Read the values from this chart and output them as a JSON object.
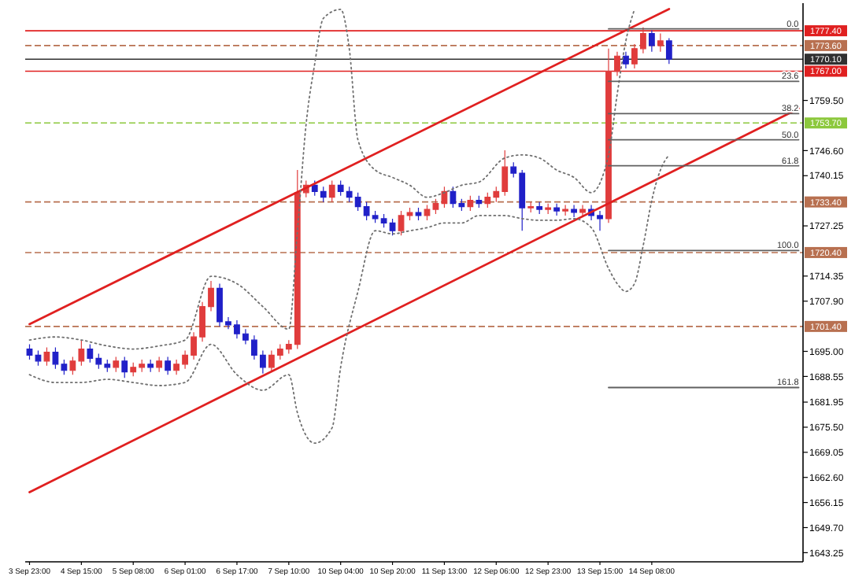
{
  "chart_data": {
    "type": "candlestick",
    "categories": [
      "3 Sep 23:00",
      null,
      null,
      null,
      null,
      null,
      "4 Sep 15:00",
      null,
      null,
      null,
      null,
      null,
      "5 Sep 08:00",
      null,
      null,
      null,
      null,
      null,
      "6 Sep 01:00",
      null,
      null,
      null,
      null,
      null,
      "6 Sep 17:00",
      null,
      null,
      null,
      null,
      null,
      "7 Sep 10:00",
      null,
      null,
      null,
      null,
      null,
      "10 Sep 04:00",
      null,
      null,
      null,
      null,
      null,
      "10 Sep 20:00",
      null,
      null,
      null,
      null,
      null,
      "11 Sep 13:00",
      null,
      null,
      null,
      null,
      null,
      "12 Sep 06:00",
      null,
      null,
      null,
      null,
      null,
      "12 Sep 23:00",
      null,
      null,
      null,
      null,
      null,
      "13 Sep 15:00",
      null,
      null,
      null,
      null,
      null,
      "14 Sep 08:00",
      null,
      null,
      null,
      null,
      null,
      null,
      null,
      null,
      null,
      null,
      null,
      null,
      null,
      null,
      null,
      null,
      null
    ],
    "ohlc": [
      [
        1695.6,
        1696.8,
        1692.9,
        1694.0
      ],
      [
        1694.0,
        1695.2,
        1691.3,
        1692.5
      ],
      [
        1692.5,
        1696.0,
        1691.3,
        1694.8
      ],
      [
        1694.8,
        1696.0,
        1690.5,
        1691.7
      ],
      [
        1691.7,
        1692.9,
        1689.0,
        1690.1
      ],
      [
        1690.1,
        1693.6,
        1689.0,
        1692.5
      ],
      [
        1692.5,
        1697.9,
        1691.3,
        1695.6
      ],
      [
        1695.6,
        1696.8,
        1692.1,
        1693.2
      ],
      [
        1693.2,
        1694.4,
        1690.5,
        1691.7
      ],
      [
        1691.7,
        1692.9,
        1689.7,
        1690.9
      ],
      [
        1690.9,
        1693.6,
        1689.7,
        1692.5
      ],
      [
        1692.5,
        1693.6,
        1688.2,
        1689.7
      ],
      [
        1689.7,
        1692.1,
        1688.6,
        1690.9
      ],
      [
        1690.9,
        1692.9,
        1689.7,
        1691.7
      ],
      [
        1691.7,
        1692.9,
        1689.7,
        1690.9
      ],
      [
        1690.9,
        1693.6,
        1689.7,
        1692.5
      ],
      [
        1692.5,
        1693.6,
        1689.0,
        1690.1
      ],
      [
        1690.1,
        1692.9,
        1689.0,
        1691.7
      ],
      [
        1691.7,
        1695.2,
        1690.5,
        1694.0
      ],
      [
        1694.0,
        1699.9,
        1692.9,
        1698.7
      ],
      [
        1698.7,
        1707.7,
        1697.5,
        1706.5
      ],
      [
        1706.5,
        1713.1,
        1705.3,
        1711.2
      ],
      [
        1711.2,
        1712.4,
        1701.4,
        1702.6
      ],
      [
        1702.6,
        1703.8,
        1700.7,
        1701.8
      ],
      [
        1701.8,
        1703.0,
        1698.3,
        1699.5
      ],
      [
        1699.5,
        1700.7,
        1696.8,
        1697.9
      ],
      [
        1697.9,
        1699.1,
        1692.9,
        1694.0
      ],
      [
        1694.0,
        1695.2,
        1689.3,
        1690.9
      ],
      [
        1690.9,
        1695.2,
        1689.7,
        1694.0
      ],
      [
        1694.0,
        1696.8,
        1692.9,
        1695.6
      ],
      [
        1695.6,
        1697.9,
        1694.4,
        1696.8
      ],
      [
        1696.8,
        1741.6,
        1695.6,
        1735.8
      ],
      [
        1735.8,
        1738.9,
        1734.6,
        1737.7
      ],
      [
        1737.7,
        1738.9,
        1735.0,
        1736.1
      ],
      [
        1736.1,
        1737.3,
        1733.4,
        1734.6
      ],
      [
        1734.6,
        1738.9,
        1733.4,
        1737.7
      ],
      [
        1737.7,
        1738.9,
        1735.0,
        1736.1
      ],
      [
        1736.1,
        1737.3,
        1733.4,
        1734.6
      ],
      [
        1734.6,
        1735.8,
        1731.1,
        1732.2
      ],
      [
        1732.2,
        1733.4,
        1728.7,
        1729.9
      ],
      [
        1729.9,
        1731.1,
        1728.0,
        1729.1
      ],
      [
        1729.1,
        1730.3,
        1726.8,
        1728.0
      ],
      [
        1728.0,
        1729.1,
        1724.8,
        1726.0
      ],
      [
        1726.0,
        1731.1,
        1724.8,
        1729.9
      ],
      [
        1729.9,
        1731.9,
        1728.7,
        1730.7
      ],
      [
        1730.7,
        1731.9,
        1728.7,
        1729.9
      ],
      [
        1729.9,
        1732.6,
        1728.7,
        1731.5
      ],
      [
        1731.5,
        1734.2,
        1730.3,
        1733.0
      ],
      [
        1733.0,
        1737.3,
        1731.9,
        1736.1
      ],
      [
        1736.1,
        1737.3,
        1731.9,
        1733.0
      ],
      [
        1733.0,
        1734.2,
        1731.1,
        1732.2
      ],
      [
        1732.2,
        1735.0,
        1731.1,
        1733.8
      ],
      [
        1733.8,
        1735.0,
        1731.9,
        1733.0
      ],
      [
        1733.0,
        1735.8,
        1731.9,
        1734.6
      ],
      [
        1734.6,
        1737.3,
        1733.4,
        1736.1
      ],
      [
        1736.1,
        1746.7,
        1735.0,
        1742.4
      ],
      [
        1742.4,
        1743.6,
        1739.7,
        1740.8
      ],
      [
        1740.8,
        1741.6,
        1726.0,
        1731.9
      ],
      [
        1731.9,
        1733.4,
        1730.7,
        1732.2
      ],
      [
        1732.2,
        1733.4,
        1730.3,
        1731.5
      ],
      [
        1731.5,
        1733.0,
        1730.3,
        1731.9
      ],
      [
        1731.9,
        1733.0,
        1729.9,
        1731.1
      ],
      [
        1731.1,
        1732.6,
        1729.9,
        1731.5
      ],
      [
        1731.5,
        1732.6,
        1729.5,
        1730.7
      ],
      [
        1730.7,
        1732.6,
        1729.5,
        1731.5
      ],
      [
        1731.5,
        1732.6,
        1728.7,
        1729.9
      ],
      [
        1729.9,
        1731.1,
        1726.0,
        1729.1
      ],
      [
        1729.1,
        1772.8,
        1728.0,
        1767.0
      ],
      [
        1767.0,
        1772.0,
        1765.8,
        1770.9
      ],
      [
        1770.9,
        1772.0,
        1767.7,
        1768.9
      ],
      [
        1768.9,
        1774.0,
        1767.7,
        1772.8
      ],
      [
        1772.8,
        1778.3,
        1771.6,
        1776.7
      ],
      [
        1776.7,
        1777.5,
        1772.0,
        1773.6
      ],
      [
        1773.6,
        1776.7,
        1772.0,
        1774.8
      ],
      [
        1774.8,
        1775.5,
        1768.9,
        1770.1
      ],
      null,
      null,
      null,
      null,
      null,
      null,
      null,
      null,
      null,
      null,
      null,
      null,
      null,
      null,
      null
    ],
    "colors": [
      "#2020c8",
      "#2020c8",
      "#e03c3c",
      "#2020c8",
      "#2020c8",
      "#e03c3c",
      "#e03c3c",
      "#2020c8",
      "#2020c8",
      "#2020c8",
      "#e03c3c",
      "#2020c8",
      "#e03c3c",
      "#e03c3c",
      "#2020c8",
      "#e03c3c",
      "#2020c8",
      "#e03c3c",
      "#e03c3c",
      "#e03c3c",
      "#e03c3c",
      "#e03c3c",
      "#2020c8",
      "#2020c8",
      "#2020c8",
      "#2020c8",
      "#2020c8",
      "#2020c8",
      "#e03c3c",
      "#e03c3c",
      "#e03c3c",
      "#e03c3c",
      "#e03c3c",
      "#2020c8",
      "#2020c8",
      "#e03c3c",
      "#2020c8",
      "#2020c8",
      "#2020c8",
      "#2020c8",
      "#2020c8",
      "#2020c8",
      "#2020c8",
      "#e03c3c",
      "#e03c3c",
      "#2020c8",
      "#e03c3c",
      "#e03c3c",
      "#e03c3c",
      "#2020c8",
      "#2020c8",
      "#e03c3c",
      "#2020c8",
      "#e03c3c",
      "#e03c3c",
      "#e03c3c",
      "#2020c8",
      "#2020c8",
      "#e03c3c",
      "#2020c8",
      "#e03c3c",
      "#2020c8",
      "#e03c3c",
      "#2020c8",
      "#e03c3c",
      "#2020c8",
      "#2020c8",
      "#e03c3c",
      "#e03c3c",
      "#2020c8",
      "#e03c3c",
      "#e03c3c",
      "#2020c8",
      "#e03c3c",
      "#2020c8",
      null,
      null,
      null,
      null,
      null,
      null,
      null,
      null,
      null,
      null,
      null,
      null,
      null,
      null,
      null
    ],
    "series": [
      {
        "type": "line",
        "color": "#e02020",
        "line_style": "solid",
        "values": [
          1702.0,
          null,
          null,
          null,
          null,
          null,
          null,
          null,
          null,
          null,
          null,
          null,
          null,
          null,
          null,
          null,
          null,
          null,
          null,
          null,
          null,
          null,
          null,
          null,
          null,
          null,
          null,
          null,
          null,
          null,
          null,
          null,
          null,
          null,
          null,
          null,
          null,
          null,
          null,
          null,
          null,
          null,
          null,
          null,
          null,
          null,
          null,
          null,
          null,
          null,
          null,
          null,
          null,
          null,
          null,
          null,
          null,
          null,
          null,
          null,
          null,
          null,
          null,
          null,
          null,
          null,
          null,
          null,
          null,
          null,
          null,
          null,
          null,
          null,
          1783.0,
          null,
          null,
          null,
          null,
          null,
          null,
          null,
          null,
          null,
          null,
          null,
          null,
          null,
          null,
          null
        ]
      },
      {
        "type": "line",
        "color": "#e02020",
        "line_style": "solid",
        "values": [
          1658.8,
          null,
          null,
          null,
          null,
          null,
          null,
          null,
          null,
          null,
          null,
          null,
          null,
          null,
          null,
          null,
          null,
          null,
          null,
          null,
          null,
          null,
          null,
          null,
          null,
          null,
          null,
          null,
          null,
          null,
          null,
          null,
          null,
          null,
          null,
          null,
          null,
          null,
          null,
          null,
          null,
          null,
          null,
          null,
          null,
          null,
          null,
          null,
          null,
          null,
          null,
          null,
          null,
          null,
          null,
          null,
          null,
          null,
          null,
          null,
          null,
          null,
          null,
          null,
          null,
          null,
          null,
          null,
          null,
          null,
          null,
          null,
          null,
          null,
          null,
          null,
          null,
          null,
          null,
          null,
          null,
          null,
          null,
          null,
          null,
          null,
          null,
          null,
          null,
          1757.4
        ]
      },
      {
        "type": "line",
        "color": "#707070",
        "line_style": "dotted",
        "values": [
          1697.9,
          null,
          null,
          1698.7,
          null,
          null,
          1697.9,
          null,
          null,
          1696.4,
          null,
          null,
          1695.6,
          null,
          null,
          1696.4,
          null,
          null,
          1697.9,
          null,
          null,
          1714.3,
          null,
          null,
          1712.4,
          null,
          null,
          1706.5,
          null,
          null,
          1700.7,
          1726.0,
          1753.3,
          1768.9,
          1780.6,
          null,
          1782.9,
          1772.8,
          1749.4,
          null,
          1741.6,
          null,
          1739.7,
          null,
          1737.7,
          null,
          1734.6,
          null,
          1735.8,
          null,
          1737.7,
          null,
          1738.5,
          null,
          null,
          1744.7,
          null,
          1745.5,
          null,
          1744.7,
          null,
          1741.6,
          null,
          1739.7,
          null,
          1735.8,
          null,
          1745.5,
          1761.1,
          1774.8,
          1782.9,
          null,
          null,
          null,
          null,
          null,
          null,
          null,
          null,
          null,
          null,
          null,
          null,
          null,
          null,
          null,
          null,
          null,
          null,
          null
        ]
      },
      {
        "type": "line",
        "color": "#707070",
        "line_style": "dotted",
        "values": [
          1689.0,
          null,
          null,
          1687.0,
          null,
          null,
          1687.0,
          null,
          null,
          1687.8,
          null,
          null,
          1687.0,
          null,
          null,
          1686.2,
          null,
          null,
          1687.0,
          null,
          null,
          1696.8,
          null,
          null,
          1689.0,
          null,
          null,
          1685.0,
          null,
          null,
          1689.0,
          1679.2,
          null,
          1671.4,
          null,
          1675.3,
          1690.9,
          null,
          1710.4,
          null,
          1726.0,
          null,
          1725.2,
          null,
          1726.0,
          null,
          1726.8,
          null,
          1728.0,
          null,
          1728.0,
          null,
          1729.9,
          null,
          null,
          1729.9,
          null,
          1729.1,
          null,
          1728.7,
          null,
          1728.7,
          null,
          1729.1,
          null,
          1726.8,
          null,
          1716.3,
          1712.4,
          1710.4,
          1712.4,
          1722.1,
          1733.8,
          1741.6,
          1745.5,
          null,
          null,
          null,
          null,
          null,
          null,
          null,
          null,
          null,
          null,
          null,
          null,
          null,
          null,
          null
        ]
      },
      {
        "type": "line",
        "name": "0.0",
        "color": "#606060",
        "line_style": "solid",
        "values": [
          null,
          null,
          null,
          null,
          null,
          null,
          null,
          null,
          null,
          null,
          null,
          null,
          null,
          null,
          null,
          null,
          null,
          null,
          null,
          null,
          null,
          null,
          null,
          null,
          null,
          null,
          null,
          null,
          null,
          null,
          null,
          null,
          null,
          null,
          null,
          null,
          null,
          null,
          null,
          null,
          null,
          null,
          null,
          null,
          null,
          null,
          null,
          null,
          null,
          null,
          null,
          null,
          null,
          null,
          null,
          null,
          null,
          null,
          null,
          null,
          null,
          null,
          null,
          null,
          null,
          null,
          null,
          1777.9,
          1777.9,
          1777.9,
          1777.9,
          1777.9,
          1777.9,
          1777.9,
          1777.9,
          1777.9,
          1777.9,
          1777.9,
          1777.9,
          1777.9,
          1777.9,
          1777.9,
          1777.9,
          1777.9,
          1777.9,
          1777.9,
          1777.9,
          1777.9,
          1777.9,
          1777.9
        ]
      },
      {
        "type": "line",
        "name": "23.6",
        "color": "#606060",
        "line_style": "solid",
        "values": [
          null,
          null,
          null,
          null,
          null,
          null,
          null,
          null,
          null,
          null,
          null,
          null,
          null,
          null,
          null,
          null,
          null,
          null,
          null,
          null,
          null,
          null,
          null,
          null,
          null,
          null,
          null,
          null,
          null,
          null,
          null,
          null,
          null,
          null,
          null,
          null,
          null,
          null,
          null,
          null,
          null,
          null,
          null,
          null,
          null,
          null,
          null,
          null,
          null,
          null,
          null,
          null,
          null,
          null,
          null,
          null,
          null,
          null,
          null,
          null,
          null,
          null,
          null,
          null,
          null,
          null,
          null,
          1764.4,
          1764.4,
          1764.4,
          1764.4,
          1764.4,
          1764.4,
          1764.4,
          1764.4,
          1764.4,
          1764.4,
          1764.4,
          1764.4,
          1764.4,
          1764.4,
          1764.4,
          1764.4,
          1764.4,
          1764.4,
          1764.4,
          1764.4,
          1764.4,
          1764.4,
          1764.4
        ]
      },
      {
        "type": "line",
        "name": "38.2",
        "color": "#606060",
        "line_style": "solid",
        "values": [
          null,
          null,
          null,
          null,
          null,
          null,
          null,
          null,
          null,
          null,
          null,
          null,
          null,
          null,
          null,
          null,
          null,
          null,
          null,
          null,
          null,
          null,
          null,
          null,
          null,
          null,
          null,
          null,
          null,
          null,
          null,
          null,
          null,
          null,
          null,
          null,
          null,
          null,
          null,
          null,
          null,
          null,
          null,
          null,
          null,
          null,
          null,
          null,
          null,
          null,
          null,
          null,
          null,
          null,
          null,
          null,
          null,
          null,
          null,
          null,
          null,
          null,
          null,
          null,
          null,
          null,
          null,
          1756.1,
          1756.1,
          1756.1,
          1756.1,
          1756.1,
          1756.1,
          1756.1,
          1756.1,
          1756.1,
          1756.1,
          1756.1,
          1756.1,
          1756.1,
          1756.1,
          1756.1,
          1756.1,
          1756.1,
          1756.1,
          1756.1,
          1756.1,
          1756.1,
          1756.1,
          1756.1
        ]
      },
      {
        "type": "line",
        "name": "50.0",
        "color": "#606060",
        "line_style": "solid",
        "values": [
          null,
          null,
          null,
          null,
          null,
          null,
          null,
          null,
          null,
          null,
          null,
          null,
          null,
          null,
          null,
          null,
          null,
          null,
          null,
          null,
          null,
          null,
          null,
          null,
          null,
          null,
          null,
          null,
          null,
          null,
          null,
          null,
          null,
          null,
          null,
          null,
          null,
          null,
          null,
          null,
          null,
          null,
          null,
          null,
          null,
          null,
          null,
          null,
          null,
          null,
          null,
          null,
          null,
          null,
          null,
          null,
          null,
          null,
          null,
          null,
          null,
          null,
          null,
          null,
          null,
          null,
          null,
          1749.4,
          1749.4,
          1749.4,
          1749.4,
          1749.4,
          1749.4,
          1749.4,
          1749.4,
          1749.4,
          1749.4,
          1749.4,
          1749.4,
          1749.4,
          1749.4,
          1749.4,
          1749.4,
          1749.4,
          1749.4,
          1749.4,
          1749.4,
          1749.4,
          1749.4,
          1749.4
        ]
      },
      {
        "type": "line",
        "name": "61.8",
        "color": "#606060",
        "line_style": "solid",
        "values": [
          null,
          null,
          null,
          null,
          null,
          null,
          null,
          null,
          null,
          null,
          null,
          null,
          null,
          null,
          null,
          null,
          null,
          null,
          null,
          null,
          null,
          null,
          null,
          null,
          null,
          null,
          null,
          null,
          null,
          null,
          null,
          null,
          null,
          null,
          null,
          null,
          null,
          null,
          null,
          null,
          null,
          null,
          null,
          null,
          null,
          null,
          null,
          null,
          null,
          null,
          null,
          null,
          null,
          null,
          null,
          null,
          null,
          null,
          null,
          null,
          null,
          null,
          null,
          null,
          null,
          null,
          null,
          1742.7,
          1742.7,
          1742.7,
          1742.7,
          1742.7,
          1742.7,
          1742.7,
          1742.7,
          1742.7,
          1742.7,
          1742.7,
          1742.7,
          1742.7,
          1742.7,
          1742.7,
          1742.7,
          1742.7,
          1742.7,
          1742.7,
          1742.7,
          1742.7,
          1742.7,
          1742.7
        ]
      },
      {
        "type": "line",
        "name": "100.0",
        "color": "#606060",
        "line_style": "solid",
        "values": [
          null,
          null,
          null,
          null,
          null,
          null,
          null,
          null,
          null,
          null,
          null,
          null,
          null,
          null,
          null,
          null,
          null,
          null,
          null,
          null,
          null,
          null,
          null,
          null,
          null,
          null,
          null,
          null,
          null,
          null,
          null,
          null,
          null,
          null,
          null,
          null,
          null,
          null,
          null,
          null,
          null,
          null,
          null,
          null,
          null,
          null,
          null,
          null,
          null,
          null,
          null,
          null,
          null,
          null,
          null,
          null,
          null,
          null,
          null,
          null,
          null,
          null,
          null,
          null,
          null,
          null,
          null,
          1720.9,
          1720.9,
          1720.9,
          1720.9,
          1720.9,
          1720.9,
          1720.9,
          1720.9,
          1720.9,
          1720.9,
          1720.9,
          1720.9,
          1720.9,
          1720.9,
          1720.9,
          1720.9,
          1720.9,
          1720.9,
          1720.9,
          1720.9,
          1720.9,
          1720.9,
          1720.9
        ]
      },
      {
        "type": "line",
        "name": "161.8",
        "color": "#606060",
        "line_style": "solid",
        "values": [
          null,
          null,
          null,
          null,
          null,
          null,
          null,
          null,
          null,
          null,
          null,
          null,
          null,
          null,
          null,
          null,
          null,
          null,
          null,
          null,
          null,
          null,
          null,
          null,
          null,
          null,
          null,
          null,
          null,
          null,
          null,
          null,
          null,
          null,
          null,
          null,
          null,
          null,
          null,
          null,
          null,
          null,
          null,
          null,
          null,
          null,
          null,
          null,
          null,
          null,
          null,
          null,
          null,
          null,
          null,
          null,
          null,
          null,
          null,
          null,
          null,
          null,
          null,
          null,
          null,
          null,
          null,
          1685.7,
          1685.7,
          1685.7,
          1685.7,
          1685.7,
          1685.7,
          1685.7,
          1685.7,
          1685.7,
          1685.7,
          1685.7,
          1685.7,
          1685.7,
          1685.7,
          1685.7,
          1685.7,
          1685.7,
          1685.7,
          1685.7,
          1685.7,
          1685.7,
          1685.7,
          1685.7
        ]
      }
    ],
    "ylim": [
      1640.9,
      1784.5
    ],
    "yticks": [
      {
        "value": 1759.5,
        "label": "1759.50"
      },
      {
        "value": 1746.6,
        "label": "1746.60"
      },
      {
        "value": 1740.15,
        "label": "1740.15"
      },
      {
        "value": 1727.25,
        "label": "1727.25"
      },
      {
        "value": 1714.35,
        "label": "1714.35"
      },
      {
        "value": 1707.9,
        "label": "1707.90"
      },
      {
        "value": 1695,
        "label": "1695.00"
      },
      {
        "value": 1688.55,
        "label": "1688.55"
      },
      {
        "value": 1681.95,
        "label": "1681.95"
      },
      {
        "value": 1675.5,
        "label": "1675.50"
      },
      {
        "value": 1669.05,
        "label": "1669.05"
      },
      {
        "value": 1662.6,
        "label": "1662.60"
      },
      {
        "value": 1656.15,
        "label": "1656.15"
      },
      {
        "value": 1649.7,
        "label": "1649.70"
      },
      {
        "value": 1643.25,
        "label": "1643.25"
      }
    ],
    "ref_lines": [
      {
        "axis": "y",
        "value": 1777.4,
        "label": "1777.40",
        "color": "#e02020",
        "line_style": "solid"
      },
      {
        "axis": "y",
        "value": 1773.6,
        "label": "1773.60",
        "color": "#b87050",
        "line_style": "dashed"
      },
      {
        "axis": "y",
        "value": 1770.1,
        "label": "1770.10",
        "color": "#303030",
        "line_style": "solid"
      },
      {
        "axis": "y",
        "value": 1767.0,
        "label": "1767.00",
        "color": "#e02020",
        "line_style": "solid"
      },
      {
        "axis": "y",
        "value": 1753.7,
        "label": "1753.70",
        "color": "#8cc83c",
        "line_style": "dashed"
      },
      {
        "axis": "y",
        "value": 1733.4,
        "label": "1733.40",
        "color": "#b87050",
        "line_style": "dashed"
      },
      {
        "axis": "y",
        "value": 1720.4,
        "label": "1720.40",
        "color": "#b87050",
        "line_style": "dashed"
      },
      {
        "axis": "y",
        "value": 1701.4,
        "label": "1701.40",
        "color": "#b87050",
        "line_style": "dashed"
      }
    ]
  }
}
